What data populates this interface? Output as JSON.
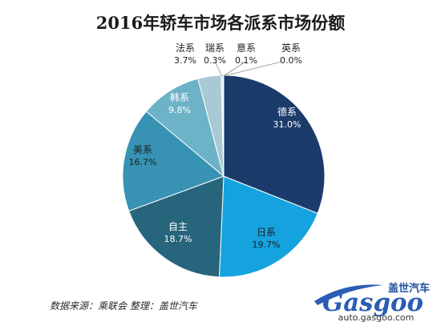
{
  "chart_data": {
    "type": "pie",
    "title": "2016年轿车市场各派系市场份额",
    "start": "top, clockwise",
    "slices": [
      {
        "name": "德系",
        "value": 31.0,
        "label": "31.0%",
        "color": "#1b3b6b",
        "text": "light"
      },
      {
        "name": "日系",
        "value": 19.7,
        "label": "19.7%",
        "color": "#14a3de",
        "text": "dark"
      },
      {
        "name": "自主",
        "value": 18.7,
        "label": "18.7%",
        "color": "#27657c",
        "text": "light"
      },
      {
        "name": "美系",
        "value": 16.7,
        "label": "16.7%",
        "color": "#3792b3",
        "text": "dark"
      },
      {
        "name": "韩系",
        "value": 9.8,
        "label": "9.8%",
        "color": "#6db3c8",
        "text": "light"
      },
      {
        "name": "法系",
        "value": 3.7,
        "label": "3.7%",
        "color": "#a9c9d4",
        "text": "dark"
      },
      {
        "name": "瑞系",
        "value": 0.3,
        "label": "0.3%",
        "color": "#d2e2e8",
        "text": "dark"
      },
      {
        "name": "意系",
        "value": 0.1,
        "label": "0.1%",
        "color": "#e6eef2",
        "text": "dark"
      },
      {
        "name": "英系",
        "value": 0.0,
        "label": "0.0%",
        "color": "#f2f6f8",
        "text": "dark"
      }
    ]
  },
  "source_note": "数据来源：乘联会  整理：盖世汽车",
  "logo": {
    "cn": "盖世汽车",
    "en": "Gasgoo",
    "url": "auto.gasgoo.com"
  }
}
